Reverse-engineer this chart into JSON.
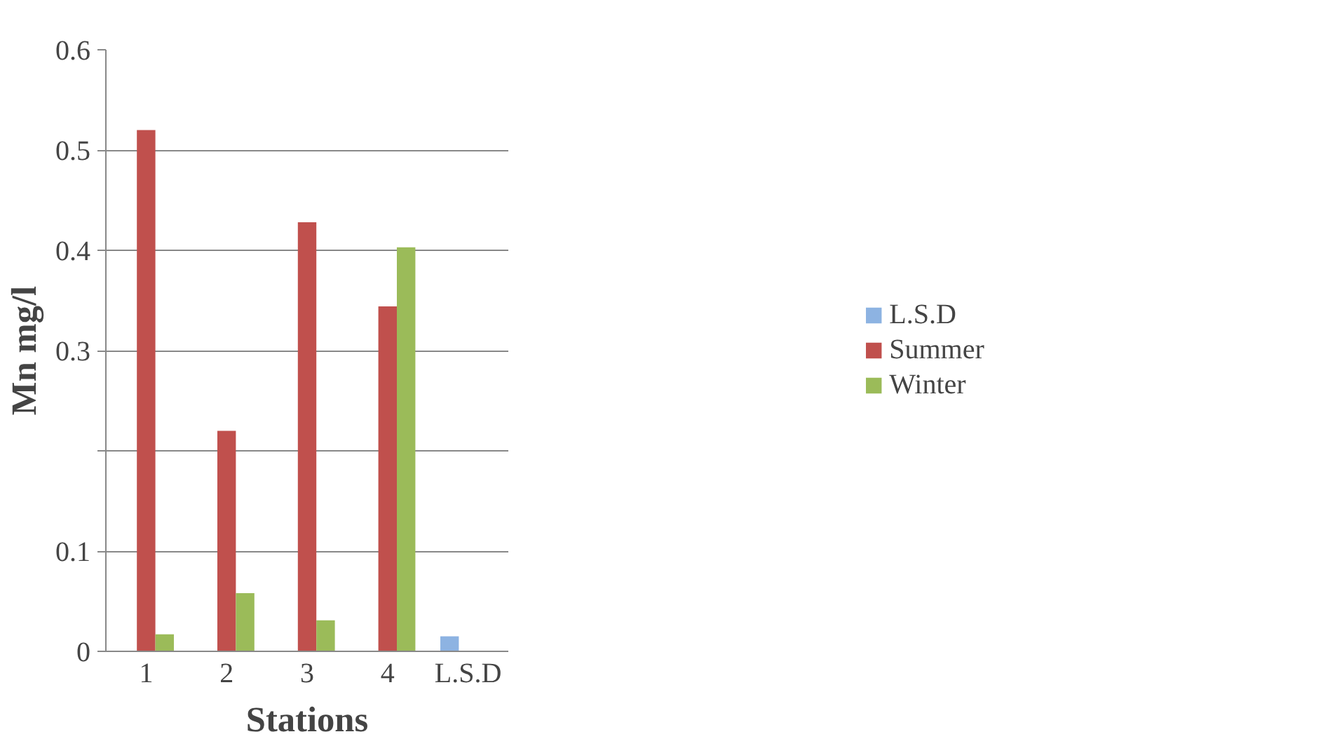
{
  "chart_data": {
    "type": "bar",
    "xlabel": "Stations",
    "ylabel": "Mn mg/l",
    "categories": [
      "1",
      "2",
      "3",
      "4",
      "L.S.D"
    ],
    "series": [
      {
        "name": "L.S.D",
        "color": "#8db3e2",
        "values": [
          null,
          null,
          null,
          null,
          0.015
        ]
      },
      {
        "name": "Summer",
        "color": "#c0504d",
        "values": [
          0.52,
          0.22,
          0.428,
          0.344,
          null
        ]
      },
      {
        "name": "Winter",
        "color": "#9bbb59",
        "values": [
          0.017,
          0.058,
          0.031,
          0.403,
          null
        ]
      }
    ],
    "ylim": [
      0,
      0.6
    ],
    "yticks": [
      0,
      0.1,
      {
        "value": 0.2,
        "label": null
      },
      0.3,
      0.4,
      0.5,
      0.6
    ],
    "grid": "y",
    "legend": "right"
  }
}
